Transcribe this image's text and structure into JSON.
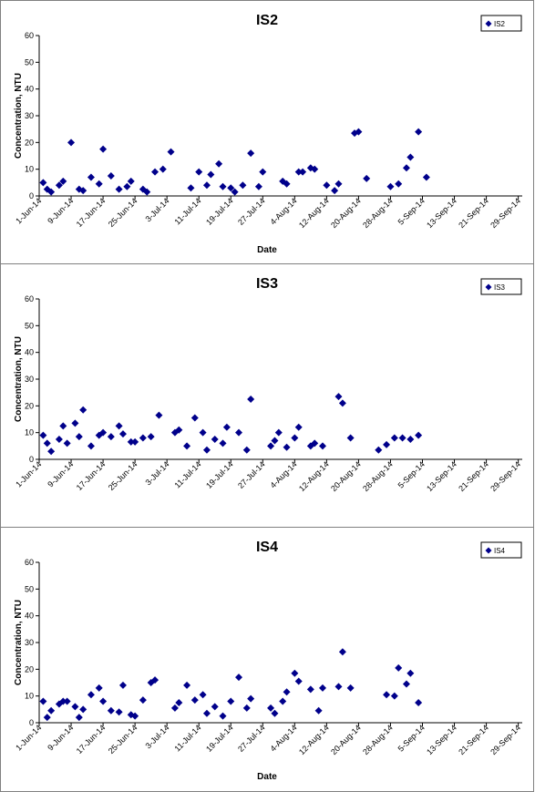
{
  "charts": [
    {
      "type": "scatter",
      "title": "IS2",
      "xlabel": "Date",
      "ylabel": "Concentration, NTU",
      "ylim": [
        0,
        60
      ],
      "yticks": [
        0,
        10,
        20,
        30,
        40,
        50,
        60
      ],
      "xlim": [
        "2014-06-01",
        "2014-09-30"
      ],
      "xtick_labels": [
        "1-Jun-14",
        "9-Jun-14",
        "17-Jun-14",
        "25-Jun-14",
        "3-Jul-14",
        "11-Jul-14",
        "19-Jul-14",
        "27-Jul-14",
        "4-Aug-14",
        "12-Aug-14",
        "20-Aug-14",
        "28-Aug-14",
        "5-Sep-14",
        "13-Sep-14",
        "21-Sep-14",
        "29-Sep-14"
      ],
      "legend": "top-right",
      "marker_color": "#00008B",
      "series": [
        {
          "name": "IS2",
          "points": [
            [
              "2014-06-02",
              5
            ],
            [
              "2014-06-03",
              2.5
            ],
            [
              "2014-06-04",
              1.5
            ],
            [
              "2014-06-06",
              4
            ],
            [
              "2014-06-07",
              5.5
            ],
            [
              "2014-06-09",
              20
            ],
            [
              "2014-06-11",
              2.5
            ],
            [
              "2014-06-12",
              2
            ],
            [
              "2014-06-14",
              7
            ],
            [
              "2014-06-16",
              4.5
            ],
            [
              "2014-06-17",
              17.5
            ],
            [
              "2014-06-19",
              7.5
            ],
            [
              "2014-06-21",
              2.5
            ],
            [
              "2014-06-23",
              3.5
            ],
            [
              "2014-06-24",
              5.5
            ],
            [
              "2014-06-27",
              2.5
            ],
            [
              "2014-06-28",
              1.5
            ],
            [
              "2014-06-30",
              9
            ],
            [
              "2014-07-02",
              10
            ],
            [
              "2014-07-04",
              16.5
            ],
            [
              "2014-07-09",
              3
            ],
            [
              "2014-07-11",
              9
            ],
            [
              "2014-07-13",
              4
            ],
            [
              "2014-07-14",
              8
            ],
            [
              "2014-07-16",
              12
            ],
            [
              "2014-07-17",
              3.5
            ],
            [
              "2014-07-19",
              3
            ],
            [
              "2014-07-20",
              1.5
            ],
            [
              "2014-07-22",
              4
            ],
            [
              "2014-07-24",
              16
            ],
            [
              "2014-07-26",
              3.5
            ],
            [
              "2014-07-27",
              9
            ],
            [
              "2014-08-01",
              5.5
            ],
            [
              "2014-08-02",
              4.5
            ],
            [
              "2014-08-05",
              9
            ],
            [
              "2014-08-06",
              9
            ],
            [
              "2014-08-08",
              10.5
            ],
            [
              "2014-08-09",
              10
            ],
            [
              "2014-08-12",
              4
            ],
            [
              "2014-08-14",
              2
            ],
            [
              "2014-08-15",
              4.5
            ],
            [
              "2014-08-19",
              23.5
            ],
            [
              "2014-08-20",
              24
            ],
            [
              "2014-08-22",
              6.5
            ],
            [
              "2014-08-28",
              3.5
            ],
            [
              "2014-08-30",
              4.5
            ],
            [
              "2014-09-01",
              10.5
            ],
            [
              "2014-09-02",
              14.5
            ],
            [
              "2014-09-04",
              24
            ],
            [
              "2014-09-06",
              7
            ]
          ]
        }
      ]
    },
    {
      "type": "scatter",
      "title": "IS3",
      "xlabel": "",
      "ylabel": "Concentration, NTU",
      "ylim": [
        0,
        60
      ],
      "yticks": [
        0,
        10,
        20,
        30,
        40,
        50,
        60
      ],
      "xlim": [
        "2014-06-01",
        "2014-09-30"
      ],
      "xtick_labels": [
        "1-Jun-14",
        "9-Jun-14",
        "17-Jun-14",
        "25-Jun-14",
        "3-Jul-14",
        "11-Jul-14",
        "19-Jul-14",
        "27-Jul-14",
        "4-Aug-14",
        "12-Aug-14",
        "20-Aug-14",
        "28-Aug-14",
        "5-Sep-14",
        "13-Sep-14",
        "21-Sep-14",
        "29-Sep-14"
      ],
      "legend": "top-right",
      "marker_color": "#00008B",
      "series": [
        {
          "name": "IS3",
          "points": [
            [
              "2014-06-02",
              9
            ],
            [
              "2014-06-03",
              6
            ],
            [
              "2014-06-04",
              3
            ],
            [
              "2014-06-06",
              7.5
            ],
            [
              "2014-06-07",
              12.5
            ],
            [
              "2014-06-08",
              6
            ],
            [
              "2014-06-10",
              13.5
            ],
            [
              "2014-06-11",
              8.5
            ],
            [
              "2014-06-12",
              18.5
            ],
            [
              "2014-06-14",
              5
            ],
            [
              "2014-06-16",
              9
            ],
            [
              "2014-06-17",
              10
            ],
            [
              "2014-06-19",
              8.5
            ],
            [
              "2014-06-21",
              12.5
            ],
            [
              "2014-06-22",
              9.5
            ],
            [
              "2014-06-24",
              6.5
            ],
            [
              "2014-06-25",
              6.5
            ],
            [
              "2014-06-27",
              8
            ],
            [
              "2014-06-29",
              8.5
            ],
            [
              "2014-07-01",
              16.5
            ],
            [
              "2014-07-05",
              10
            ],
            [
              "2014-07-06",
              11
            ],
            [
              "2014-07-08",
              5
            ],
            [
              "2014-07-10",
              15.5
            ],
            [
              "2014-07-12",
              10
            ],
            [
              "2014-07-13",
              3.5
            ],
            [
              "2014-07-15",
              7.5
            ],
            [
              "2014-07-17",
              6
            ],
            [
              "2014-07-18",
              12
            ],
            [
              "2014-07-21",
              10
            ],
            [
              "2014-07-23",
              3.5
            ],
            [
              "2014-07-24",
              22.5
            ],
            [
              "2014-07-29",
              5
            ],
            [
              "2014-07-30",
              7
            ],
            [
              "2014-07-31",
              10
            ],
            [
              "2014-08-02",
              4.5
            ],
            [
              "2014-08-04",
              8
            ],
            [
              "2014-08-05",
              12
            ],
            [
              "2014-08-08",
              5
            ],
            [
              "2014-08-09",
              6
            ],
            [
              "2014-08-11",
              5
            ],
            [
              "2014-08-15",
              23.5
            ],
            [
              "2014-08-16",
              21
            ],
            [
              "2014-08-18",
              8
            ],
            [
              "2014-08-25",
              3.5
            ],
            [
              "2014-08-27",
              5.5
            ],
            [
              "2014-08-29",
              8
            ],
            [
              "2014-08-31",
              8
            ],
            [
              "2014-09-02",
              7.5
            ],
            [
              "2014-09-04",
              9
            ]
          ]
        }
      ]
    },
    {
      "type": "scatter",
      "title": "IS4",
      "xlabel": "Date",
      "ylabel": "Concentration, NTU",
      "ylim": [
        0,
        60
      ],
      "yticks": [
        0,
        10,
        20,
        30,
        40,
        50,
        60
      ],
      "xlim": [
        "2014-06-01",
        "2014-09-30"
      ],
      "xtick_labels": [
        "1-Jun-14",
        "9-Jun-14",
        "17-Jun-14",
        "25-Jun-14",
        "3-Jul-14",
        "11-Jul-14",
        "19-Jul-14",
        "27-Jul-14",
        "4-Aug-14",
        "12-Aug-14",
        "20-Aug-14",
        "28-Aug-14",
        "5-Sep-14",
        "13-Sep-14",
        "21-Sep-14",
        "29-Sep-14"
      ],
      "legend": "top-right",
      "marker_color": "#00008B",
      "series": [
        {
          "name": "IS4",
          "points": [
            [
              "2014-06-02",
              8
            ],
            [
              "2014-06-03",
              2
            ],
            [
              "2014-06-04",
              4.5
            ],
            [
              "2014-06-06",
              7
            ],
            [
              "2014-06-07",
              8
            ],
            [
              "2014-06-08",
              8
            ],
            [
              "2014-06-10",
              6
            ],
            [
              "2014-06-11",
              2
            ],
            [
              "2014-06-12",
              5
            ],
            [
              "2014-06-14",
              10.5
            ],
            [
              "2014-06-16",
              13
            ],
            [
              "2014-06-17",
              8
            ],
            [
              "2014-06-19",
              4.5
            ],
            [
              "2014-06-21",
              4
            ],
            [
              "2014-06-22",
              14
            ],
            [
              "2014-06-24",
              3
            ],
            [
              "2014-06-25",
              2.5
            ],
            [
              "2014-06-27",
              8.5
            ],
            [
              "2014-06-29",
              15
            ],
            [
              "2014-06-30",
              16
            ],
            [
              "2014-07-05",
              5.5
            ],
            [
              "2014-07-06",
              7.5
            ],
            [
              "2014-07-08",
              14
            ],
            [
              "2014-07-10",
              8.5
            ],
            [
              "2014-07-12",
              10.5
            ],
            [
              "2014-07-13",
              3.5
            ],
            [
              "2014-07-15",
              6
            ],
            [
              "2014-07-17",
              2.5
            ],
            [
              "2014-07-19",
              8
            ],
            [
              "2014-07-21",
              17
            ],
            [
              "2014-07-23",
              5.5
            ],
            [
              "2014-07-24",
              9
            ],
            [
              "2014-07-29",
              5.5
            ],
            [
              "2014-07-30",
              3.5
            ],
            [
              "2014-08-01",
              8
            ],
            [
              "2014-08-02",
              11.5
            ],
            [
              "2014-08-04",
              18.5
            ],
            [
              "2014-08-05",
              15.5
            ],
            [
              "2014-08-08",
              12.5
            ],
            [
              "2014-08-10",
              4.5
            ],
            [
              "2014-08-11",
              13
            ],
            [
              "2014-08-15",
              13.5
            ],
            [
              "2014-08-16",
              26.5
            ],
            [
              "2014-08-18",
              13
            ],
            [
              "2014-08-27",
              10.5
            ],
            [
              "2014-08-29",
              10
            ],
            [
              "2014-08-30",
              20.5
            ],
            [
              "2014-09-01",
              14.5
            ],
            [
              "2014-09-02",
              18.5
            ],
            [
              "2014-09-04",
              7.5
            ]
          ]
        }
      ]
    }
  ]
}
